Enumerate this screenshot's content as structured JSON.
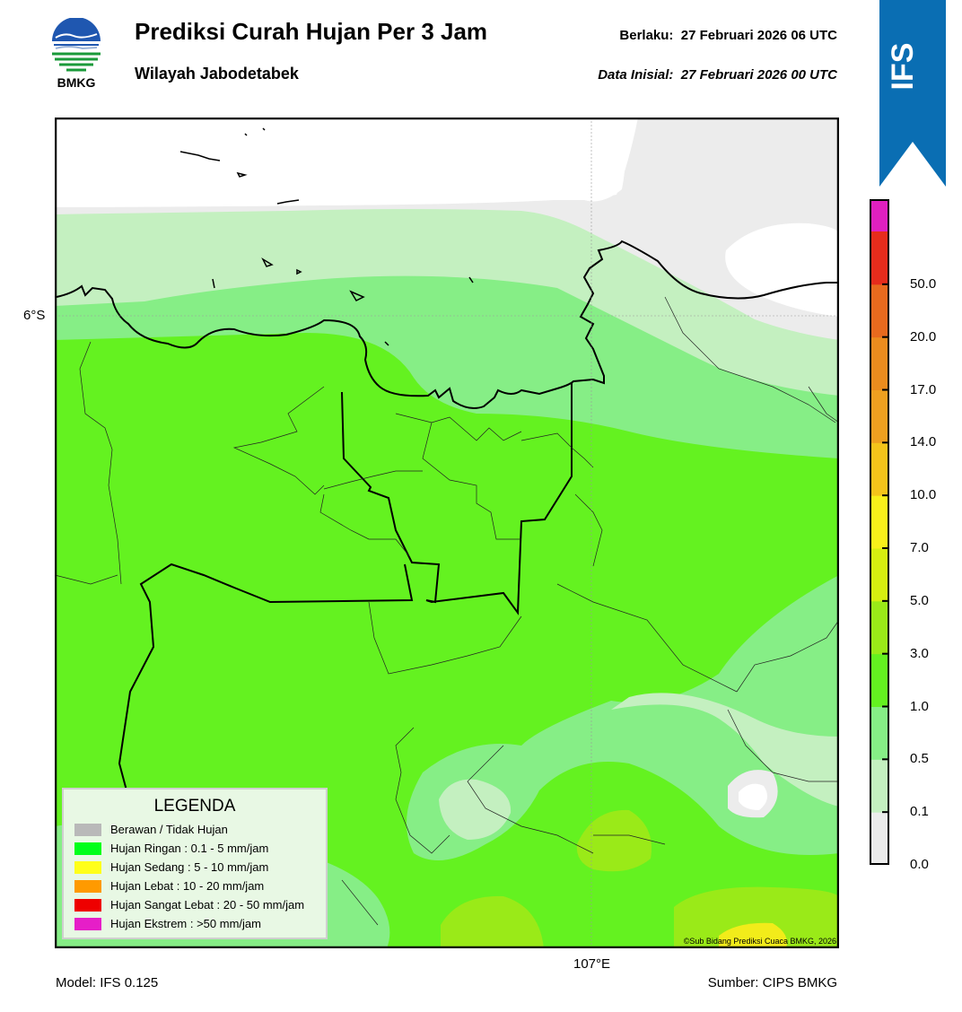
{
  "header": {
    "logo_text": "BMKG",
    "title": "Prediksi Curah Hujan Per 3 Jam",
    "subtitle": "Wilayah Jabodetabek",
    "valid_label": "Berlaku:",
    "valid_value": "27 Februari 2026 06 UTC",
    "valid_text": "Berlaku:  27 Februari 2026 06 UTC",
    "init_label": "Data Inisial:",
    "init_value": "27 Februari 2026 00 UTC",
    "init_text": "Data Inisial:  27 Februari 2026 00 UTC",
    "ribbon_text": "IFS",
    "ribbon_color": "#0a6eb3"
  },
  "map": {
    "lat_label": "6°S",
    "lon_label": "107°E",
    "copyright": "©Sub Bidang Prediksi Cuaca BMKG, 2026"
  },
  "legend": {
    "title": "LEGENDA",
    "items": [
      {
        "label": "Berawan / Tidak Hujan",
        "color": "#b9b9b9"
      },
      {
        "label": "Hujan Ringan : 0.1 - 5 mm/jam",
        "color": "#00ff1a"
      },
      {
        "label": "Hujan Sedang : 5 - 10 mm/jam",
        "color": "#ffff1a"
      },
      {
        "label": "Hujan Lebat : 10 - 20 mm/jam",
        "color": "#ff9a00"
      },
      {
        "label": "Hujan Sangat Lebat : 20 - 50 mm/jam",
        "color": "#ee0000"
      },
      {
        "label": "Hujan Ekstrem : >50 mm/jam",
        "color": "#e61ec8"
      }
    ]
  },
  "colorbar": {
    "ticks": [
      "0.0",
      "0.1",
      "0.5",
      "1.0",
      "3.0",
      "5.0",
      "7.0",
      "10.0",
      "14.0",
      "17.0",
      "20.0",
      "50.0"
    ],
    "colors": [
      "#ececec",
      "#c4f0c0",
      "#86ee86",
      "#64f220",
      "#9aea18",
      "#d6ee10",
      "#f8f01a",
      "#f4c41a",
      "#eea020",
      "#ec8c1e",
      "#e86a1e",
      "#e62c1c",
      "#e020c0"
    ]
  },
  "footer": {
    "model": "Model: IFS 0.125",
    "source": "Sumber: CIPS BMKG"
  }
}
